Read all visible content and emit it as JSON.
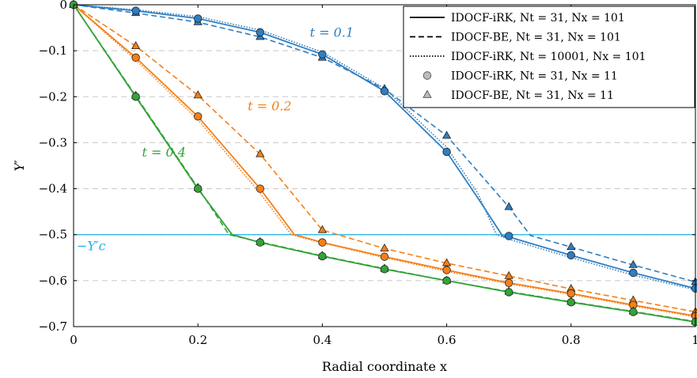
{
  "chart_data": {
    "type": "line",
    "xlabel": "Radial coordinate x",
    "ylabel": "Y′",
    "xlim": [
      0,
      1
    ],
    "ylim": [
      -0.7,
      0
    ],
    "xticks": [
      0,
      0.2,
      0.4,
      0.6,
      0.8,
      1
    ],
    "xtick_labels": [
      "0",
      "0.2",
      "0.4",
      "0.6",
      "0.8",
      "1"
    ],
    "yticks": [
      0,
      -0.1,
      -0.2,
      -0.3,
      -0.4,
      -0.5,
      -0.6,
      -0.7
    ],
    "ytick_labels": [
      "0",
      "−0.1",
      "−0.2",
      "−0.3",
      "−0.4",
      "−0.5",
      "−0.6",
      "−0.7"
    ],
    "grid": "horizontal dashed",
    "legend_position": "top-right",
    "threshold": {
      "y": -0.5,
      "label": "−Y′c",
      "color": "#1ab2e6"
    },
    "legend": [
      {
        "label": "IDOCF-iRK, Nt = 31, Nx = 101",
        "style": "solid"
      },
      {
        "label": "IDOCF-BE, Nt = 31, Nx = 101",
        "style": "dashed"
      },
      {
        "label": "IDOCF-iRK, Nt = 10001, Nx = 101",
        "style": "dotted"
      },
      {
        "label": "IDOCF-iRK, Nt = 31, Nx = 11",
        "style": "circle"
      },
      {
        "label": "IDOCF-BE, Nt = 31, Nx = 11",
        "style": "triangle"
      }
    ],
    "series": [
      {
        "name": "t = 0.1",
        "color": "#2f7ec1",
        "label_at": [
          0.38,
          -0.07
        ],
        "irk_line": {
          "x": [
            0,
            0.1,
            0.2,
            0.3,
            0.4,
            0.5,
            0.6,
            0.65,
            0.69,
            0.7,
            0.8,
            0.9,
            1.0
          ],
          "y": [
            0,
            -0.013,
            -0.03,
            -0.06,
            -0.108,
            -0.188,
            -0.32,
            -0.42,
            -0.503,
            -0.505,
            -0.545,
            -0.583,
            -0.617
          ]
        },
        "be_line": {
          "x": [
            0,
            0.1,
            0.2,
            0.3,
            0.4,
            0.5,
            0.6,
            0.7,
            0.735,
            0.8,
            0.9,
            1.0
          ],
          "y": [
            0,
            -0.018,
            -0.038,
            -0.07,
            -0.115,
            -0.183,
            -0.285,
            -0.44,
            -0.502,
            -0.527,
            -0.566,
            -0.603
          ]
        },
        "fine_line": {
          "x": [
            0,
            0.1,
            0.2,
            0.3,
            0.4,
            0.5,
            0.6,
            0.65,
            0.68,
            0.7,
            0.8,
            0.9,
            1.0
          ],
          "y": [
            0,
            -0.011,
            -0.026,
            -0.055,
            -0.103,
            -0.182,
            -0.31,
            -0.41,
            -0.5,
            -0.51,
            -0.55,
            -0.588,
            -0.62
          ]
        },
        "irk_points": {
          "x": [
            0,
            0.1,
            0.2,
            0.3,
            0.4,
            0.5,
            0.6,
            0.7,
            0.8,
            0.9,
            1.0
          ],
          "y": [
            0,
            -0.013,
            -0.03,
            -0.06,
            -0.108,
            -0.188,
            -0.32,
            -0.503,
            -0.545,
            -0.583,
            -0.617
          ]
        },
        "be_points": {
          "x": [
            0,
            0.1,
            0.2,
            0.3,
            0.4,
            0.5,
            0.6,
            0.7,
            0.8,
            0.9,
            1.0
          ],
          "y": [
            0,
            -0.018,
            -0.038,
            -0.07,
            -0.115,
            -0.183,
            -0.285,
            -0.44,
            -0.527,
            -0.566,
            -0.603
          ]
        }
      },
      {
        "name": "t = 0.2",
        "color": "#f57f17",
        "label_at": [
          0.28,
          -0.23
        ],
        "irk_line": {
          "x": [
            0,
            0.1,
            0.2,
            0.3,
            0.355,
            0.4,
            0.5,
            0.6,
            0.7,
            0.8,
            0.9,
            1.0
          ],
          "y": [
            0,
            -0.115,
            -0.243,
            -0.4,
            -0.5,
            -0.517,
            -0.548,
            -0.577,
            -0.605,
            -0.628,
            -0.653,
            -0.677
          ]
        },
        "be_line": {
          "x": [
            0,
            0.1,
            0.2,
            0.3,
            0.4,
            0.5,
            0.6,
            0.7,
            0.8,
            0.9,
            1.0
          ],
          "y": [
            0,
            -0.09,
            -0.197,
            -0.325,
            -0.49,
            -0.53,
            -0.562,
            -0.59,
            -0.618,
            -0.643,
            -0.668
          ]
        },
        "fine_line": {
          "x": [
            0,
            0.1,
            0.2,
            0.3,
            0.35,
            0.4,
            0.5,
            0.6,
            0.7,
            0.8,
            0.9,
            1.0
          ],
          "y": [
            0,
            -0.12,
            -0.25,
            -0.41,
            -0.5,
            -0.518,
            -0.55,
            -0.58,
            -0.607,
            -0.63,
            -0.655,
            -0.679
          ]
        },
        "irk_points": {
          "x": [
            0,
            0.1,
            0.2,
            0.3,
            0.4,
            0.5,
            0.6,
            0.7,
            0.8,
            0.9,
            1.0
          ],
          "y": [
            0,
            -0.115,
            -0.243,
            -0.4,
            -0.517,
            -0.548,
            -0.577,
            -0.605,
            -0.628,
            -0.653,
            -0.677
          ]
        },
        "be_points": {
          "x": [
            0,
            0.1,
            0.2,
            0.3,
            0.4,
            0.5,
            0.6,
            0.7,
            0.8,
            0.9,
            1.0
          ],
          "y": [
            0,
            -0.09,
            -0.197,
            -0.325,
            -0.49,
            -0.53,
            -0.562,
            -0.59,
            -0.618,
            -0.643,
            -0.668
          ]
        }
      },
      {
        "name": "t = 0.4",
        "color": "#34a33a",
        "label_at": [
          0.11,
          -0.33
        ],
        "irk_line": {
          "x": [
            0,
            0.1,
            0.2,
            0.255,
            0.3,
            0.4,
            0.5,
            0.6,
            0.7,
            0.8,
            0.9,
            1.0
          ],
          "y": [
            0,
            -0.2,
            -0.4,
            -0.5,
            -0.517,
            -0.547,
            -0.575,
            -0.6,
            -0.625,
            -0.647,
            -0.668,
            -0.69
          ]
        },
        "be_line": {
          "x": [
            0,
            0.1,
            0.2,
            0.25,
            0.3,
            0.4,
            0.5,
            0.6,
            0.7,
            0.8,
            0.9,
            1.0
          ],
          "y": [
            0,
            -0.198,
            -0.398,
            -0.5,
            -0.516,
            -0.546,
            -0.574,
            -0.6,
            -0.624,
            -0.646,
            -0.667,
            -0.689
          ]
        },
        "fine_line": {
          "x": [
            0,
            0.1,
            0.2,
            0.255,
            0.3,
            0.4,
            0.5,
            0.6,
            0.7,
            0.8,
            0.9,
            1.0
          ],
          "y": [
            0,
            -0.201,
            -0.401,
            -0.5,
            -0.517,
            -0.547,
            -0.575,
            -0.6,
            -0.625,
            -0.647,
            -0.668,
            -0.69
          ]
        },
        "irk_points": {
          "x": [
            0,
            0.1,
            0.2,
            0.3,
            0.4,
            0.5,
            0.6,
            0.7,
            0.8,
            0.9,
            1.0
          ],
          "y": [
            0,
            -0.2,
            -0.4,
            -0.517,
            -0.547,
            -0.575,
            -0.6,
            -0.625,
            -0.647,
            -0.668,
            -0.69
          ]
        },
        "be_points": {
          "x": [
            0,
            0.1,
            0.2,
            0.3,
            0.4,
            0.5,
            0.6,
            0.7,
            0.8,
            0.9,
            1.0
          ],
          "y": [
            0,
            -0.198,
            -0.398,
            -0.516,
            -0.546,
            -0.574,
            -0.6,
            -0.624,
            -0.646,
            -0.667,
            -0.689
          ]
        }
      }
    ]
  }
}
